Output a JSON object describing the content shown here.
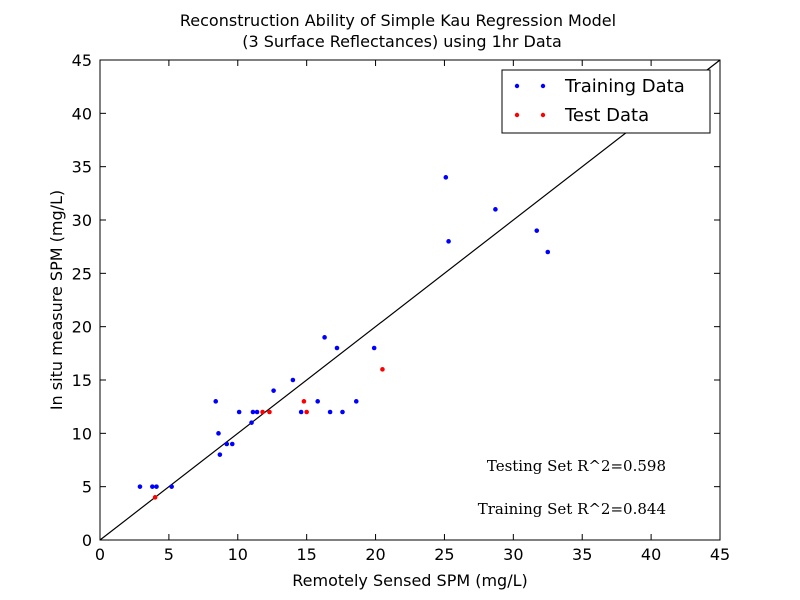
{
  "chart_data": {
    "type": "scatter",
    "title_line1": "Reconstruction Ability of Simple Kau Regression Model",
    "title_line2": "(3 Surface Reflectances) using 1hr Data",
    "xlabel": "Remotely Sensed SPM (mg/L)",
    "ylabel": "In situ measure SPM (mg/L)",
    "xlim": [
      0,
      45
    ],
    "ylim": [
      0,
      45
    ],
    "xticks": [
      0,
      5,
      10,
      15,
      20,
      25,
      30,
      35,
      40,
      45
    ],
    "yticks": [
      0,
      5,
      10,
      15,
      20,
      25,
      30,
      35,
      40,
      45
    ],
    "grid": false,
    "legend_position": "top-right",
    "reference_line": {
      "x": [
        0,
        45
      ],
      "y": [
        0,
        45
      ],
      "color": "#000000"
    },
    "series": [
      {
        "name": "Training Data",
        "color": "#0000ff",
        "points": [
          [
            2.9,
            5
          ],
          [
            3.8,
            5
          ],
          [
            4.1,
            5
          ],
          [
            5.2,
            5
          ],
          [
            8.4,
            13
          ],
          [
            8.6,
            10
          ],
          [
            8.7,
            8
          ],
          [
            9.2,
            9
          ],
          [
            9.6,
            9
          ],
          [
            10.1,
            12
          ],
          [
            11.0,
            11
          ],
          [
            11.1,
            12
          ],
          [
            11.4,
            12
          ],
          [
            12.6,
            14
          ],
          [
            14.0,
            15
          ],
          [
            14.6,
            12
          ],
          [
            15.8,
            13
          ],
          [
            16.3,
            19
          ],
          [
            16.7,
            12
          ],
          [
            17.2,
            18
          ],
          [
            17.6,
            12
          ],
          [
            18.6,
            13
          ],
          [
            19.9,
            18
          ],
          [
            25.1,
            34
          ],
          [
            25.3,
            28
          ],
          [
            28.7,
            31
          ],
          [
            31.7,
            29
          ],
          [
            32.5,
            27
          ]
        ]
      },
      {
        "name": "Test Data",
        "color": "#ff0000",
        "points": [
          [
            4.0,
            4
          ],
          [
            11.8,
            12
          ],
          [
            12.3,
            12
          ],
          [
            14.8,
            13
          ],
          [
            15.0,
            12
          ],
          [
            20.5,
            16
          ]
        ]
      }
    ],
    "annotations": [
      "Testing Set R^2=0.598",
      "Training Set R^2=0.844"
    ]
  }
}
